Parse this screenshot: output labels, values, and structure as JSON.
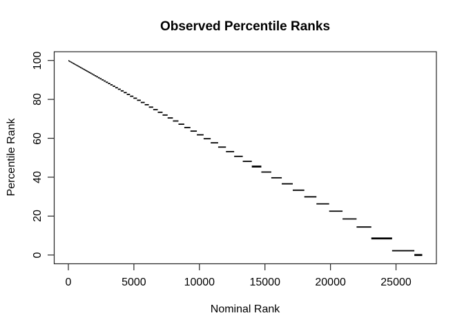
{
  "chart_data": {
    "type": "scatter",
    "title": "Observed Percentile Ranks",
    "xlabel": "Nominal Rank",
    "ylabel": "Percentile Rank",
    "x_ticks": [
      0,
      5000,
      10000,
      15000,
      20000,
      25000
    ],
    "x_tick_labels": [
      "0",
      "5000",
      "10000",
      "15000",
      "20000",
      "25000"
    ],
    "y_ticks": [
      0,
      20,
      40,
      60,
      80,
      100
    ],
    "y_tick_labels": [
      "0",
      "20",
      "40",
      "60",
      "80",
      "100"
    ],
    "xlim": [
      -1080,
      28080
    ],
    "ylim": [
      -4.5,
      104.5
    ],
    "grid": false,
    "legend": false,
    "point_color": "#000000",
    "axis_color": "#222222",
    "background": "#ffffff",
    "segments_format": [
      "nominal_rank_start",
      "nominal_rank_end",
      "percentile_rank",
      "thick_flag"
    ],
    "segments": [
      [
        0,
        25,
        99.91
      ],
      [
        25,
        51,
        99.81
      ],
      [
        51,
        79,
        99.71
      ],
      [
        79,
        108,
        99.6
      ],
      [
        108,
        138,
        99.49
      ],
      [
        138,
        170,
        99.37
      ],
      [
        170,
        204,
        99.24
      ],
      [
        204,
        239,
        99.11
      ],
      [
        239,
        276,
        98.98
      ],
      [
        276,
        315,
        98.83
      ],
      [
        315,
        356,
        98.68
      ],
      [
        356,
        399,
        98.52
      ],
      [
        399,
        444,
        98.36
      ],
      [
        444,
        491,
        98.18
      ],
      [
        491,
        541,
        98.0
      ],
      [
        541,
        593,
        97.8
      ],
      [
        593,
        648,
        97.6
      ],
      [
        648,
        705,
        97.39
      ],
      [
        705,
        765,
        97.17
      ],
      [
        765,
        828,
        96.93
      ],
      [
        828,
        894,
        96.69
      ],
      [
        894,
        964,
        96.43
      ],
      [
        964,
        1037,
        96.16
      ],
      [
        1037,
        1114,
        95.87
      ],
      [
        1114,
        1195,
        95.57
      ],
      [
        1195,
        1280,
        95.26
      ],
      [
        1280,
        1369,
        94.93
      ],
      [
        1369,
        1462,
        94.59
      ],
      [
        1462,
        1560,
        94.22
      ],
      [
        1560,
        1663,
        93.84
      ],
      [
        1663,
        1771,
        93.44
      ],
      [
        1771,
        1885,
        93.02
      ],
      [
        1885,
        2004,
        92.58
      ],
      [
        2004,
        2129,
        92.11
      ],
      [
        2129,
        2260,
        91.63
      ],
      [
        2260,
        2398,
        91.12
      ],
      [
        2398,
        2543,
        90.58
      ],
      [
        2543,
        2695,
        90.02
      ],
      [
        2695,
        2855,
        89.43
      ],
      [
        2855,
        3023,
        88.8
      ],
      [
        3023,
        3199,
        88.15
      ],
      [
        3199,
        3384,
        87.47
      ],
      [
        3384,
        3578,
        86.75
      ],
      [
        3578,
        3782,
        85.99
      ],
      [
        3782,
        3996,
        85.2
      ],
      [
        3996,
        4221,
        84.37
      ],
      [
        4221,
        4457,
        83.49
      ],
      [
        4457,
        4705,
        82.57
      ],
      [
        4705,
        4965,
        81.61
      ],
      [
        4965,
        5238,
        80.6
      ],
      [
        5238,
        5525,
        79.54
      ],
      [
        5525,
        5826,
        78.42
      ],
      [
        5826,
        6142,
        77.25
      ],
      [
        6142,
        6474,
        76.02
      ],
      [
        6474,
        6823,
        74.73
      ],
      [
        6823,
        7189,
        73.37
      ],
      [
        7189,
        7573,
        71.95
      ],
      [
        7573,
        7977,
        70.46
      ],
      [
        7977,
        8401,
        68.89
      ],
      [
        8401,
        8846,
        67.24
      ],
      [
        8846,
        9313,
        65.51
      ],
      [
        9313,
        9804,
        63.69
      ],
      [
        9804,
        10319,
        61.78
      ],
      [
        10319,
        10860,
        59.78
      ],
      [
        10860,
        11428,
        57.67
      ],
      [
        11428,
        12024,
        55.47
      ],
      [
        12024,
        12650,
        53.15
      ],
      [
        12650,
        13308,
        50.71
      ],
      [
        13308,
        13998,
        48.16
      ],
      [
        13998,
        14723,
        45.47,
        1
      ],
      [
        14723,
        15484,
        42.65
      ],
      [
        15484,
        16283,
        39.69
      ],
      [
        16283,
        17122,
        36.59
      ],
      [
        17122,
        18003,
        33.32
      ],
      [
        18003,
        18928,
        29.9
      ],
      [
        18928,
        19899,
        26.3
      ],
      [
        19899,
        20920,
        22.52
      ],
      [
        20920,
        21991,
        18.55
      ],
      [
        21991,
        23116,
        14.39
      ],
      [
        23116,
        24700,
        8.52,
        1
      ],
      [
        24700,
        26400,
        2.22
      ],
      [
        26400,
        27000,
        0.0,
        1
      ]
    ]
  }
}
